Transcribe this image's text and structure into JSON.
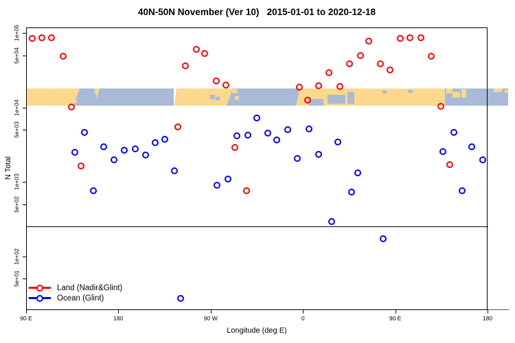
{
  "title": "40N-50N November (Ver 10)   2015-01-01 to 2020-12-18",
  "legend": {
    "items": [
      {
        "label": "Land (Nadir&Glint)",
        "color": "#FF0000"
      },
      {
        "label": "Ocean (Glint)",
        "color": "#0000FF"
      }
    ]
  },
  "chart_data": {
    "type": "scatter",
    "title": "40N-50N November (Ver 10)   2015-01-01 to 2020-12-18",
    "xlabel": "Longitude (deg E)",
    "ylabel": "N Total",
    "y_scale": "log",
    "xlim": [
      90,
      540
    ],
    "ylim": [
      20,
      120000
    ],
    "grid": false,
    "legend_position": "bottom-left",
    "x_ticks": [
      {
        "pos": 90,
        "label": "90 E"
      },
      {
        "pos": 180,
        "label": "180"
      },
      {
        "pos": 270,
        "label": "90 W"
      },
      {
        "pos": 360,
        "label": "0"
      },
      {
        "pos": 450,
        "label": "90 E"
      },
      {
        "pos": 540,
        "label": "180"
      }
    ],
    "y_ticks": [
      {
        "value": 100000,
        "label": "1e+05"
      },
      {
        "value": 50000,
        "label": "5e+04"
      },
      {
        "value": 10000,
        "label": "1e+04"
      },
      {
        "value": 5000,
        "label": "5e+03"
      },
      {
        "value": 1000,
        "label": "1e+03"
      },
      {
        "value": 500,
        "label": "5e+02"
      },
      {
        "value": 100,
        "label": "1e+02"
      },
      {
        "value": 50,
        "label": "5e+01"
      }
    ],
    "reference_line_N": 250,
    "map_band": {
      "description": "40N-50N latitude land/ocean map strip",
      "N_range": [
        10500,
        18000
      ],
      "land_color": "#FBD88D",
      "ocean_color": "#A8BAD7",
      "seam_color": "#FFFFFF"
    },
    "series": [
      {
        "name": "Land (Nadir&Glint)",
        "color": "#FF0000",
        "marker": "open-circle",
        "points": [
          [
            96.0,
            84000
          ],
          [
            105.4,
            86000
          ],
          [
            114.8,
            86000
          ],
          [
            126.2,
            48600
          ],
          [
            134.2,
            10100
          ],
          [
            143.6,
            1630
          ],
          [
            238.0,
            5460
          ],
          [
            245.3,
            36100
          ],
          [
            256.1,
            60100
          ],
          [
            264.1,
            52900
          ],
          [
            275.5,
            22600
          ],
          [
            284.9,
            19900
          ],
          [
            293.6,
            2890
          ],
          [
            305.0,
            760
          ],
          [
            356.5,
            18700
          ],
          [
            364.6,
            12500
          ],
          [
            375.3,
            19500
          ],
          [
            385.3,
            29200
          ],
          [
            396.0,
            19100
          ],
          [
            405.4,
            38500
          ],
          [
            416.1,
            49700
          ],
          [
            424.2,
            77500
          ],
          [
            435.5,
            38500
          ],
          [
            444.9,
            31800
          ],
          [
            455.0,
            84400
          ],
          [
            464.3,
            86000
          ],
          [
            475.0,
            86000
          ],
          [
            485.1,
            48600
          ],
          [
            494.5,
            10300
          ],
          [
            503.2,
            1700
          ]
        ]
      },
      {
        "name": "Ocean (Glint)",
        "color": "#0000FF",
        "marker": "open-circle",
        "points": [
          [
            137.5,
            2490
          ],
          [
            146.9,
            4610
          ],
          [
            155.6,
            760
          ],
          [
            165.7,
            2950
          ],
          [
            175.7,
            1970
          ],
          [
            185.8,
            2660
          ],
          [
            196.5,
            2770
          ],
          [
            206.5,
            2290
          ],
          [
            215.9,
            3350
          ],
          [
            225.3,
            3730
          ],
          [
            234.6,
            1400
          ],
          [
            240.7,
            27
          ],
          [
            276.2,
            900
          ],
          [
            286.9,
            1090
          ],
          [
            295.6,
            4140
          ],
          [
            306.3,
            4230
          ],
          [
            315.0,
            7190
          ],
          [
            325.7,
            4510
          ],
          [
            334.4,
            3650
          ],
          [
            345.1,
            5020
          ],
          [
            354.5,
            2060
          ],
          [
            365.9,
            5130
          ],
          [
            375.3,
            2340
          ],
          [
            388.0,
            292
          ],
          [
            394.0,
            3420
          ],
          [
            407.4,
            730
          ],
          [
            413.4,
            1320
          ],
          [
            438.2,
            172
          ],
          [
            496.5,
            2550
          ],
          [
            507.2,
            4610
          ],
          [
            515.2,
            760
          ],
          [
            524.6,
            2950
          ],
          [
            535.3,
            1970
          ]
        ]
      }
    ]
  }
}
